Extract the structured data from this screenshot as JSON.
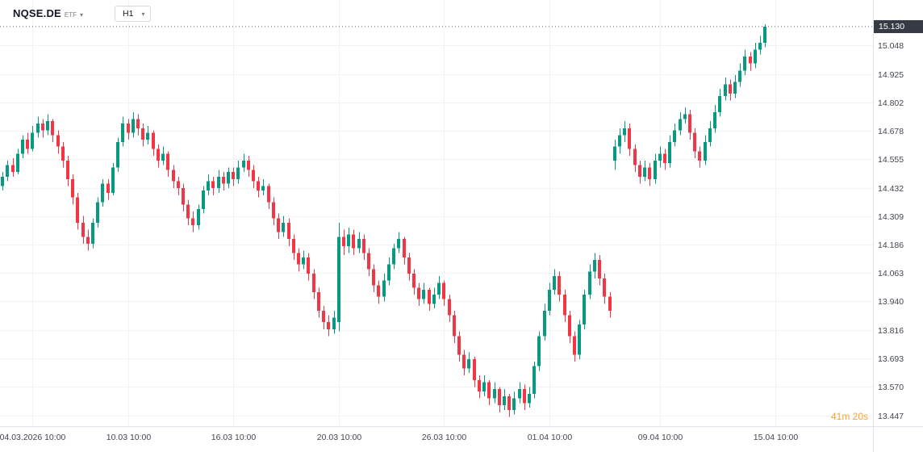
{
  "header": {
    "symbol": "NQSE.DE",
    "instrument_label": "ETF",
    "timeframe": "H1"
  },
  "colors": {
    "up": "#089981",
    "down": "#f23645",
    "grid": "#f0f2f6",
    "separator": "#e0e3eb",
    "axis_text": "#42464e",
    "badge_bg": "#363a45",
    "last_price_line": "#5d636e",
    "countdown": "#f7a42b"
  },
  "chart_data": {
    "type": "candlestick",
    "symbol": "NQSE.DE",
    "instrument_type": "ETF",
    "timeframe": "H1",
    "last_price_label": "15.130",
    "countdown": "41m 20s",
    "grid": "on",
    "y_min": 13.4,
    "y_max": 15.245,
    "y_ticks": [
      "15.048",
      "14.925",
      "14.802",
      "14.678",
      "14.555",
      "14.432",
      "14.309",
      "14.186",
      "14.063",
      "13.940",
      "13.816",
      "13.693",
      "13.570",
      "13.447"
    ],
    "x_labels": [
      {
        "label": "04.03.2026 10:00",
        "index": 6
      },
      {
        "label": "10.03 10:00",
        "index": 25
      },
      {
        "label": "16.03 10:00",
        "index": 46
      },
      {
        "label": "20.03 10:00",
        "index": 67
      },
      {
        "label": "26.03 10:00",
        "index": 88
      },
      {
        "label": "01.04 10:00",
        "index": 109
      },
      {
        "label": "09.04 10:00",
        "index": 131
      },
      {
        "label": "15.04 10:00",
        "index": 154
      }
    ],
    "total_slots": 174,
    "candles": [
      [
        14.44,
        14.5,
        14.42,
        14.48
      ],
      [
        14.48,
        14.55,
        14.46,
        14.53
      ],
      [
        14.53,
        14.56,
        14.48,
        14.5
      ],
      [
        14.5,
        14.6,
        14.49,
        14.58
      ],
      [
        14.58,
        14.66,
        14.56,
        14.64
      ],
      [
        14.64,
        14.67,
        14.58,
        14.6
      ],
      [
        14.6,
        14.7,
        14.59,
        14.67
      ],
      [
        14.67,
        14.74,
        14.65,
        14.71
      ],
      [
        14.71,
        14.73,
        14.65,
        14.68
      ],
      [
        14.68,
        14.75,
        14.66,
        14.72
      ],
      [
        14.72,
        14.73,
        14.63,
        14.66
      ],
      [
        14.66,
        14.68,
        14.58,
        14.61
      ],
      [
        14.61,
        14.63,
        14.52,
        14.55
      ],
      [
        14.55,
        14.57,
        14.44,
        14.47
      ],
      [
        14.47,
        14.49,
        14.36,
        14.39
      ],
      [
        14.39,
        14.41,
        14.25,
        14.28
      ],
      [
        14.28,
        14.31,
        14.19,
        14.22
      ],
      [
        14.22,
        14.25,
        14.16,
        14.19
      ],
      [
        14.19,
        14.3,
        14.17,
        14.28
      ],
      [
        14.28,
        14.39,
        14.26,
        14.37
      ],
      [
        14.37,
        14.47,
        14.35,
        14.45
      ],
      [
        14.45,
        14.47,
        14.38,
        14.41
      ],
      [
        14.41,
        14.54,
        14.4,
        14.52
      ],
      [
        14.52,
        14.65,
        14.5,
        14.63
      ],
      [
        14.63,
        14.74,
        14.61,
        14.71
      ],
      [
        14.71,
        14.73,
        14.64,
        14.67
      ],
      [
        14.67,
        14.76,
        14.65,
        14.73
      ],
      [
        14.73,
        14.75,
        14.66,
        14.69
      ],
      [
        14.69,
        14.71,
        14.61,
        14.64
      ],
      [
        14.64,
        14.7,
        14.62,
        14.67
      ],
      [
        14.67,
        14.68,
        14.57,
        14.6
      ],
      [
        14.6,
        14.62,
        14.52,
        14.55
      ],
      [
        14.55,
        14.61,
        14.53,
        14.58
      ],
      [
        14.58,
        14.59,
        14.48,
        14.51
      ],
      [
        14.51,
        14.53,
        14.43,
        14.46
      ],
      [
        14.46,
        14.48,
        14.4,
        14.43
      ],
      [
        14.43,
        14.45,
        14.33,
        14.36
      ],
      [
        14.36,
        14.38,
        14.27,
        14.3
      ],
      [
        14.3,
        14.33,
        14.24,
        14.27
      ],
      [
        14.27,
        14.36,
        14.25,
        14.34
      ],
      [
        14.34,
        14.44,
        14.32,
        14.42
      ],
      [
        14.42,
        14.49,
        14.4,
        14.46
      ],
      [
        14.46,
        14.48,
        14.4,
        14.43
      ],
      [
        14.43,
        14.51,
        14.41,
        14.48
      ],
      [
        14.48,
        14.5,
        14.42,
        14.45
      ],
      [
        14.45,
        14.52,
        14.43,
        14.5
      ],
      [
        14.5,
        14.52,
        14.44,
        14.47
      ],
      [
        14.47,
        14.55,
        14.45,
        14.52
      ],
      [
        14.52,
        14.58,
        14.5,
        14.55
      ],
      [
        14.55,
        14.57,
        14.48,
        14.51
      ],
      [
        14.51,
        14.53,
        14.43,
        14.46
      ],
      [
        14.46,
        14.48,
        14.39,
        14.42
      ],
      [
        14.42,
        14.47,
        14.4,
        14.44
      ],
      [
        14.44,
        14.45,
        14.34,
        14.37
      ],
      [
        14.37,
        14.39,
        14.27,
        14.3
      ],
      [
        14.3,
        14.32,
        14.21,
        14.24
      ],
      [
        14.24,
        14.31,
        14.22,
        14.28
      ],
      [
        14.28,
        14.3,
        14.18,
        14.21
      ],
      [
        14.21,
        14.23,
        14.12,
        14.15
      ],
      [
        14.15,
        14.17,
        14.07,
        14.1
      ],
      [
        14.1,
        14.16,
        14.08,
        14.13
      ],
      [
        14.13,
        14.15,
        14.03,
        14.06
      ],
      [
        14.06,
        14.08,
        13.95,
        13.98
      ],
      [
        13.98,
        14.0,
        13.87,
        13.9
      ],
      [
        13.9,
        13.92,
        13.82,
        13.85
      ],
      [
        13.85,
        13.88,
        13.79,
        13.82
      ],
      [
        13.82,
        13.9,
        13.8,
        13.87
      ],
      [
        13.85,
        14.28,
        13.81,
        14.22
      ],
      [
        14.22,
        14.25,
        14.14,
        14.18
      ],
      [
        14.18,
        14.26,
        14.15,
        14.23
      ],
      [
        14.23,
        14.25,
        14.14,
        14.17
      ],
      [
        14.17,
        14.24,
        14.15,
        14.21
      ],
      [
        14.21,
        14.23,
        14.12,
        14.15
      ],
      [
        14.15,
        14.17,
        14.05,
        14.08
      ],
      [
        14.08,
        14.1,
        13.98,
        14.01
      ],
      [
        14.01,
        14.03,
        13.93,
        13.96
      ],
      [
        13.96,
        14.06,
        13.94,
        14.03
      ],
      [
        14.03,
        14.13,
        14.01,
        14.1
      ],
      [
        14.1,
        14.19,
        14.08,
        14.17
      ],
      [
        14.17,
        14.24,
        14.15,
        14.21
      ],
      [
        14.21,
        14.22,
        14.1,
        14.13
      ],
      [
        14.13,
        14.15,
        14.03,
        14.06
      ],
      [
        14.06,
        14.08,
        13.97,
        14.0
      ],
      [
        14.0,
        14.02,
        13.92,
        13.95
      ],
      [
        13.95,
        14.02,
        13.93,
        13.99
      ],
      [
        13.99,
        14.0,
        13.9,
        13.93
      ],
      [
        13.93,
        14.0,
        13.91,
        13.97
      ],
      [
        13.97,
        14.05,
        13.95,
        14.02
      ],
      [
        14.02,
        14.03,
        13.92,
        13.95
      ],
      [
        13.95,
        13.97,
        13.85,
        13.88
      ],
      [
        13.88,
        13.9,
        13.76,
        13.79
      ],
      [
        13.79,
        13.81,
        13.68,
        13.71
      ],
      [
        13.71,
        13.73,
        13.62,
        13.65
      ],
      [
        13.65,
        13.72,
        13.63,
        13.69
      ],
      [
        13.69,
        13.7,
        13.57,
        13.6
      ],
      [
        13.6,
        13.62,
        13.52,
        13.55
      ],
      [
        13.55,
        13.62,
        13.53,
        13.59
      ],
      [
        13.59,
        13.6,
        13.49,
        13.52
      ],
      [
        13.52,
        13.59,
        13.5,
        13.56
      ],
      [
        13.56,
        13.57,
        13.46,
        13.49
      ],
      [
        13.49,
        13.56,
        13.47,
        13.53
      ],
      [
        13.53,
        13.54,
        13.44,
        13.47
      ],
      [
        13.47,
        13.55,
        13.45,
        13.52
      ],
      [
        13.52,
        13.59,
        13.5,
        13.56
      ],
      [
        13.56,
        13.58,
        13.47,
        13.5
      ],
      [
        13.5,
        13.57,
        13.48,
        13.54
      ],
      [
        13.54,
        13.68,
        13.52,
        13.66
      ],
      [
        13.66,
        13.81,
        13.64,
        13.79
      ],
      [
        13.79,
        13.93,
        13.77,
        13.9
      ],
      [
        13.9,
        14.02,
        13.88,
        13.99
      ],
      [
        13.99,
        14.08,
        13.97,
        14.05
      ],
      [
        14.05,
        14.07,
        13.94,
        13.97
      ],
      [
        13.97,
        13.99,
        13.85,
        13.88
      ],
      [
        13.88,
        13.9,
        13.76,
        13.79
      ],
      [
        13.79,
        13.81,
        13.68,
        13.71
      ],
      [
        13.71,
        13.86,
        13.69,
        13.84
      ],
      [
        13.84,
        13.99,
        13.82,
        13.97
      ],
      [
        13.97,
        14.1,
        13.95,
        14.07
      ],
      [
        14.07,
        14.15,
        14.04,
        14.12
      ],
      [
        14.12,
        14.14,
        14.01,
        14.04
      ],
      [
        14.04,
        14.06,
        13.93,
        13.96
      ],
      [
        13.96,
        13.98,
        13.87,
        13.9
      ],
      [
        14.55,
        14.64,
        14.51,
        14.61
      ],
      [
        14.61,
        14.69,
        14.58,
        14.66
      ],
      [
        14.66,
        14.72,
        14.63,
        14.69
      ],
      [
        14.69,
        14.71,
        14.57,
        14.6
      ],
      [
        14.6,
        14.62,
        14.5,
        14.53
      ],
      [
        14.53,
        14.55,
        14.45,
        14.48
      ],
      [
        14.48,
        14.55,
        14.46,
        14.52
      ],
      [
        14.52,
        14.54,
        14.44,
        14.47
      ],
      [
        14.47,
        14.58,
        14.45,
        14.55
      ],
      [
        14.55,
        14.61,
        14.52,
        14.58
      ],
      [
        14.58,
        14.6,
        14.51,
        14.54
      ],
      [
        14.54,
        14.66,
        14.52,
        14.63
      ],
      [
        14.63,
        14.71,
        14.61,
        14.68
      ],
      [
        14.68,
        14.76,
        14.66,
        14.73
      ],
      [
        14.73,
        14.78,
        14.71,
        14.75
      ],
      [
        14.75,
        14.77,
        14.64,
        14.67
      ],
      [
        14.67,
        14.69,
        14.56,
        14.59
      ],
      [
        14.59,
        14.61,
        14.52,
        14.55
      ],
      [
        14.55,
        14.66,
        14.53,
        14.63
      ],
      [
        14.63,
        14.72,
        14.61,
        14.69
      ],
      [
        14.69,
        14.79,
        14.67,
        14.76
      ],
      [
        14.76,
        14.86,
        14.74,
        14.83
      ],
      [
        14.83,
        14.91,
        14.81,
        14.88
      ],
      [
        14.88,
        14.9,
        14.81,
        14.84
      ],
      [
        14.84,
        14.92,
        14.82,
        14.89
      ],
      [
        14.89,
        14.97,
        14.87,
        14.94
      ],
      [
        14.94,
        15.03,
        14.92,
        15.0
      ],
      [
        15.0,
        15.02,
        14.94,
        14.97
      ],
      [
        14.97,
        15.06,
        14.95,
        15.03
      ],
      [
        15.03,
        15.09,
        15.01,
        15.06
      ],
      [
        15.06,
        15.14,
        15.04,
        15.13
      ]
    ]
  }
}
